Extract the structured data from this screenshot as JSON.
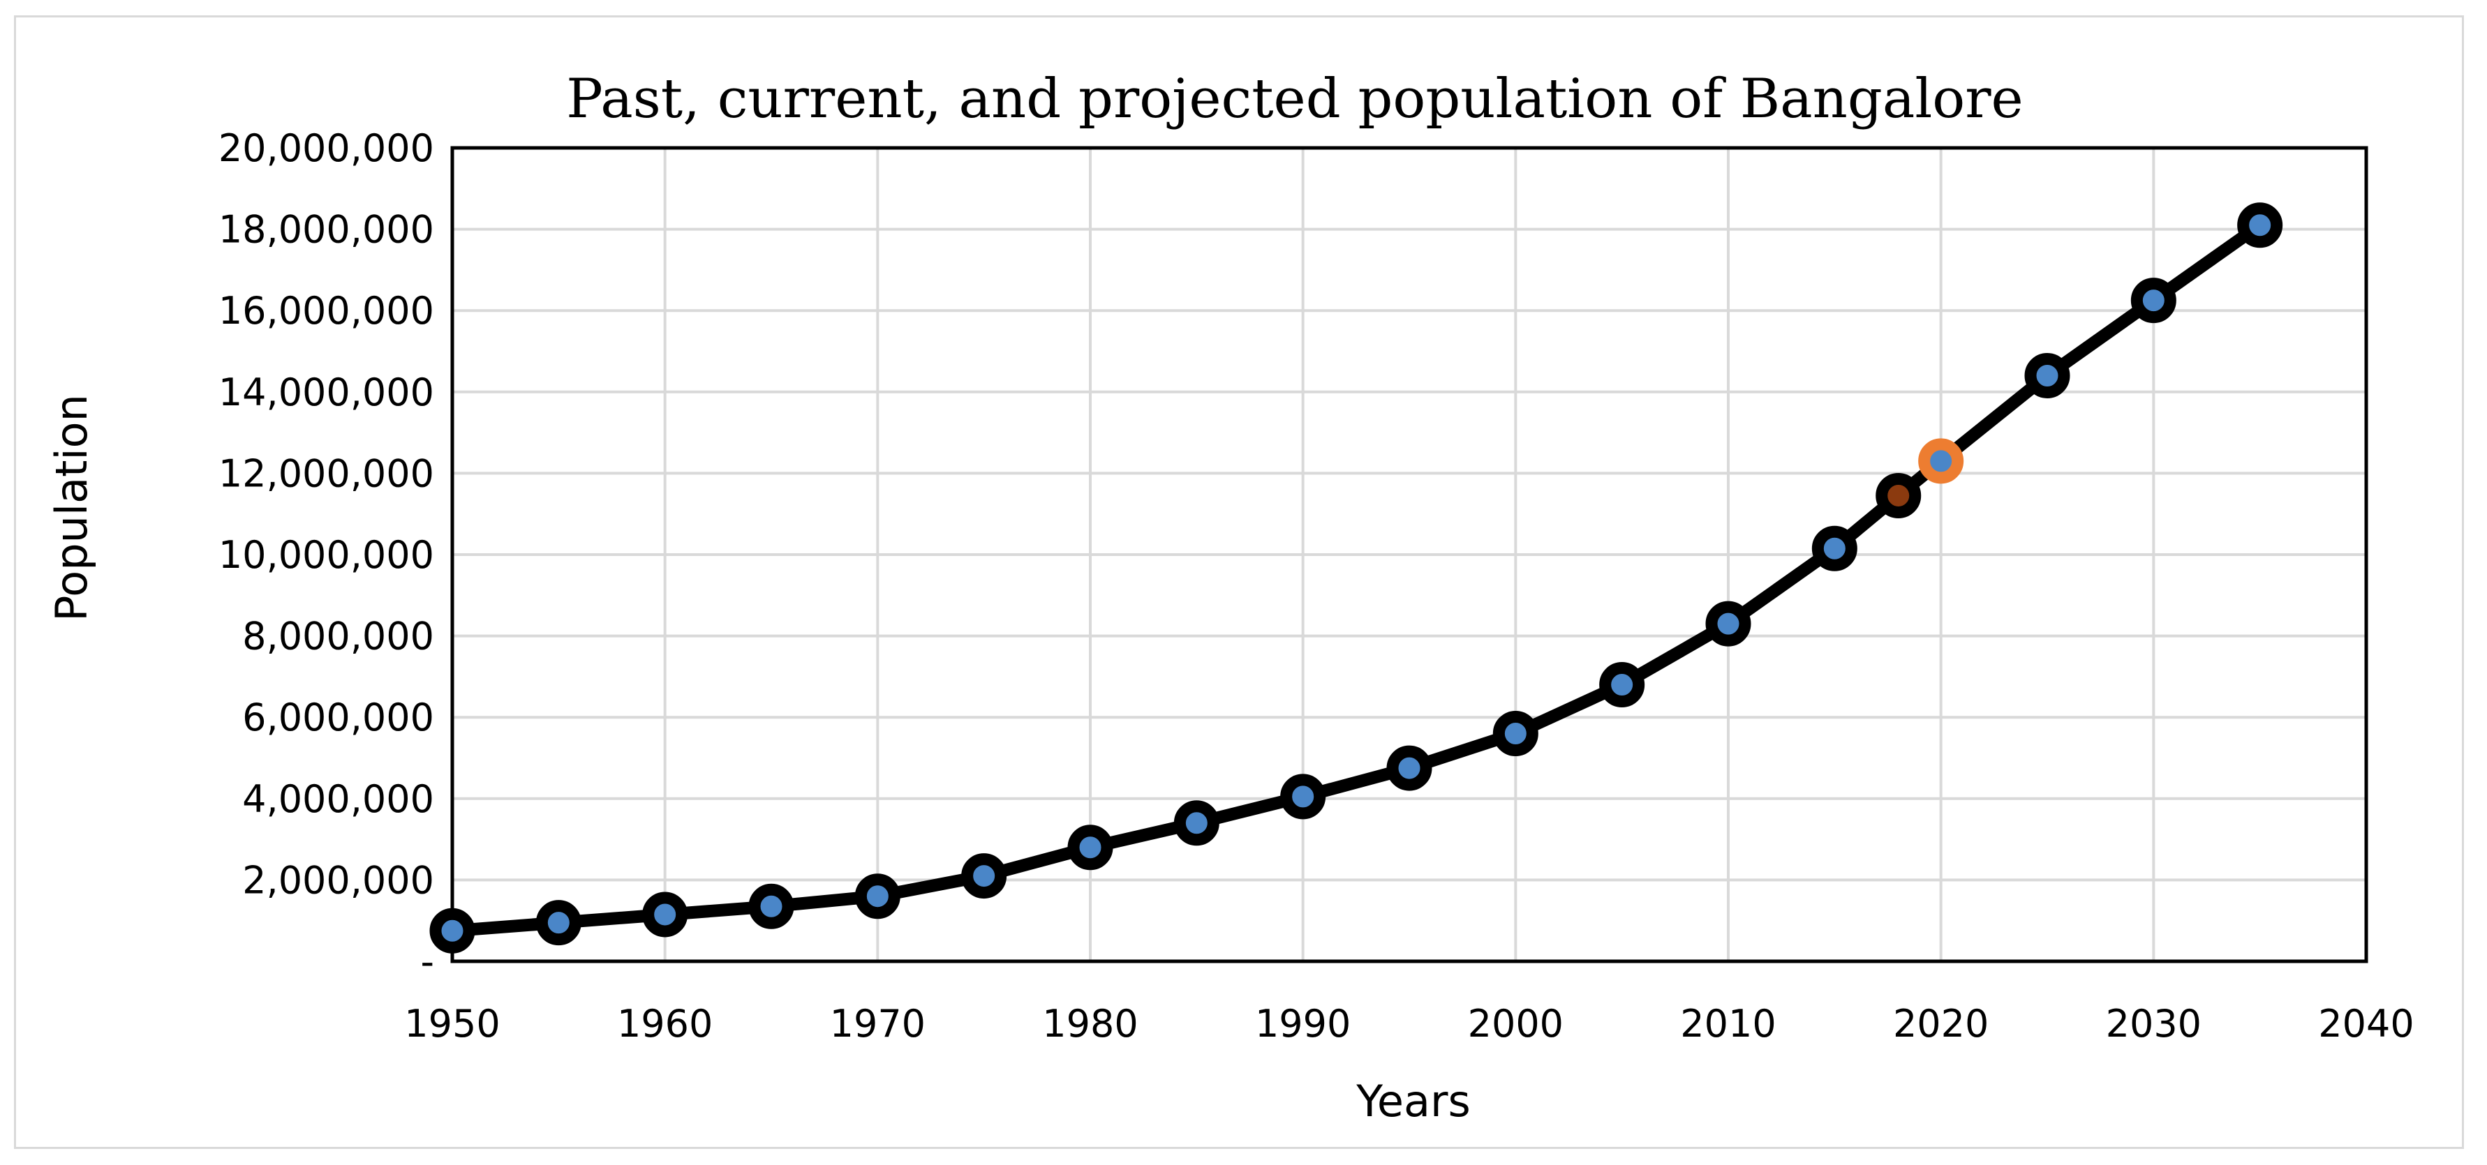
{
  "chart_data": {
    "type": "line",
    "title": "Past, current, and projected population of Bangalore",
    "xlabel": "Years",
    "ylabel": "Population",
    "xlim": [
      1950,
      2040
    ],
    "ylim": [
      0,
      20000000
    ],
    "x_ticks": [
      "1950",
      "1960",
      "1970",
      "1980",
      "1990",
      "2000",
      "2010",
      "2020",
      "2030",
      "2040"
    ],
    "y_ticks": [
      "-",
      "2,000,000",
      "4,000,000",
      "6,000,000",
      "8,000,000",
      "10,000,000",
      "12,000,000",
      "14,000,000",
      "16,000,000",
      "18,000,000",
      "20,000,000"
    ],
    "grid": true,
    "series": [
      {
        "name": "Population",
        "line_color": "#000000",
        "marker_fill": "#4a86c8",
        "x": [
          1950,
          1955,
          1960,
          1965,
          1970,
          1975,
          1980,
          1985,
          1990,
          1995,
          2000,
          2005,
          2010,
          2015,
          2018,
          2020,
          2025,
          2030,
          2035
        ],
        "y": [
          750000,
          950000,
          1150000,
          1350000,
          1600000,
          2100000,
          2800000,
          3400000,
          4050000,
          4750000,
          5600000,
          6800000,
          8300000,
          10150000,
          11450000,
          12300000,
          14400000,
          16250000,
          18100000
        ]
      }
    ],
    "highlights": [
      {
        "x": 2018,
        "y": 11450000,
        "marker_fill": "#8b3a0f",
        "ring_color": "#000000"
      },
      {
        "x": 2020,
        "y": 12300000,
        "marker_fill": "#4a86c8",
        "ring_color": "#ed7d31"
      }
    ],
    "colors": {
      "grid": "#d9d9d9",
      "plot_border": "#000000",
      "frame": "#d9d9d9"
    }
  }
}
